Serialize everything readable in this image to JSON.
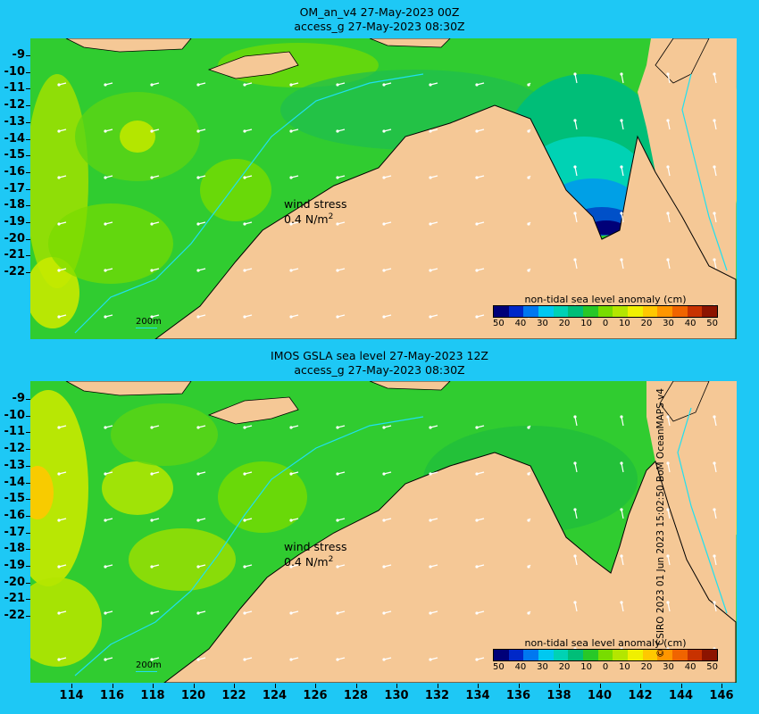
{
  "top_panel": {
    "title_line1": "OM_an_v4  27-May-2023 00Z",
    "title_line2": "access_g 27-May-2023 08:30Z",
    "wind_label": "wind stress",
    "wind_value": "0.4 N/m",
    "wind_sup": "2",
    "isobath_label": "200m",
    "legend_title": "non-tidal sea level anomaly (cm)"
  },
  "bottom_panel": {
    "title_line1": "IMOS GSLA sea level  27-May-2023 12Z",
    "title_line2": "access_g 27-May-2023 08:30Z",
    "wind_label": "wind stress",
    "wind_value": "0.4 N/m",
    "wind_sup": "2",
    "isobath_label": "200m",
    "legend_title": "non-tidal sea level anomaly (cm)"
  },
  "legend_ticks": [
    "50",
    "40",
    "30",
    "20",
    "10",
    "0",
    "10",
    "20",
    "30",
    "40",
    "50"
  ],
  "legend_colors": [
    "#000078",
    "#0028c8",
    "#0078f0",
    "#00c8f0",
    "#00d2b4",
    "#00be78",
    "#28c828",
    "#78dc00",
    "#b4e600",
    "#f0f000",
    "#ffc800",
    "#ff9600",
    "#f06400",
    "#c83200",
    "#8c1400"
  ],
  "y_labels": [
    "-9",
    "-10",
    "-11",
    "-12",
    "-13",
    "-14",
    "-15",
    "-16",
    "-17",
    "-18",
    "-19",
    "-20",
    "-21",
    "-22"
  ],
  "x_labels": [
    "114",
    "116",
    "118",
    "120",
    "122",
    "124",
    "126",
    "128",
    "130",
    "132",
    "134",
    "136",
    "138",
    "140",
    "142",
    "144",
    "146"
  ],
  "credit": "© CSIRO 2023  01 Jun 2023 15:02:50 BoM OceanMAPS v4",
  "colors": {
    "land": "#f5c896",
    "ocean_bg": "#28c828",
    "frame": "#1ec8f5",
    "isobath": "#20e0f0",
    "coast_shelf": "#a0a0a0"
  }
}
